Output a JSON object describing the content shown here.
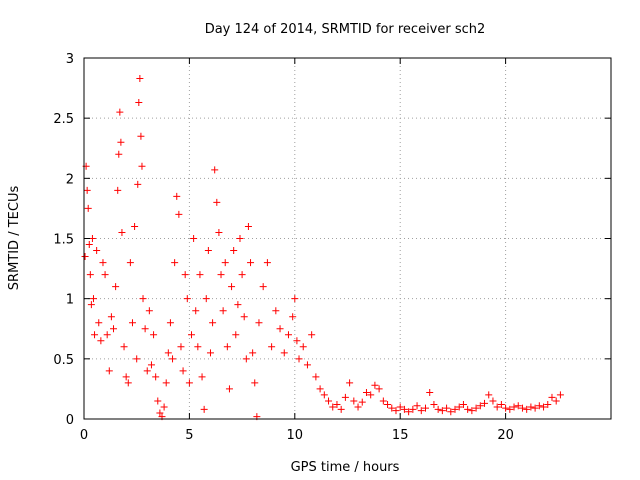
{
  "chart_data": {
    "type": "scatter",
    "title": "Day 124 of 2014, SRMTID for receiver sch2",
    "xlabel": "GPS time / hours",
    "ylabel": "SRMTID / TECUs",
    "xlim": [
      0,
      25
    ],
    "ylim": [
      0,
      3
    ],
    "x_ticks": [
      0,
      5,
      10,
      15,
      20
    ],
    "x_tick_labels": [
      "0",
      "5",
      "10",
      "15",
      "20"
    ],
    "y_ticks": [
      0,
      0.5,
      1,
      1.5,
      2,
      2.5,
      3
    ],
    "y_tick_labels": [
      "0",
      "0.5",
      "1",
      "1.5",
      "2",
      "2.5",
      "3"
    ],
    "grid": true,
    "marker": "+",
    "colors": {
      "points": "#ff0000",
      "grid": "#a0a0a0",
      "axes": "#000000"
    },
    "series": [
      {
        "name": "SRMTID",
        "points": [
          [
            0.05,
            1.35
          ],
          [
            0.1,
            2.1
          ],
          [
            0.15,
            1.9
          ],
          [
            0.2,
            1.75
          ],
          [
            0.25,
            1.45
          ],
          [
            0.3,
            1.2
          ],
          [
            0.35,
            0.95
          ],
          [
            0.4,
            1.5
          ],
          [
            0.45,
            1.0
          ],
          [
            0.5,
            0.7
          ],
          [
            0.6,
            1.4
          ],
          [
            0.7,
            0.8
          ],
          [
            0.8,
            0.65
          ],
          [
            0.9,
            1.3
          ],
          [
            1.0,
            1.2
          ],
          [
            1.1,
            0.7
          ],
          [
            1.2,
            0.4
          ],
          [
            1.3,
            0.85
          ],
          [
            1.4,
            0.75
          ],
          [
            1.5,
            1.1
          ],
          [
            1.6,
            1.9
          ],
          [
            1.65,
            2.2
          ],
          [
            1.7,
            2.55
          ],
          [
            1.75,
            2.3
          ],
          [
            1.8,
            1.55
          ],
          [
            1.9,
            0.6
          ],
          [
            2.0,
            0.35
          ],
          [
            2.1,
            0.3
          ],
          [
            2.2,
            1.3
          ],
          [
            2.3,
            0.8
          ],
          [
            2.4,
            1.6
          ],
          [
            2.5,
            0.5
          ],
          [
            2.55,
            1.95
          ],
          [
            2.6,
            2.63
          ],
          [
            2.65,
            2.83
          ],
          [
            2.7,
            2.35
          ],
          [
            2.75,
            2.1
          ],
          [
            2.8,
            1.0
          ],
          [
            2.9,
            0.75
          ],
          [
            3.0,
            0.4
          ],
          [
            3.1,
            0.9
          ],
          [
            3.2,
            0.45
          ],
          [
            3.3,
            0.7
          ],
          [
            3.4,
            0.35
          ],
          [
            3.5,
            0.15
          ],
          [
            3.6,
            0.05
          ],
          [
            3.7,
            0.02
          ],
          [
            3.8,
            0.1
          ],
          [
            3.9,
            0.3
          ],
          [
            4.0,
            0.55
          ],
          [
            4.1,
            0.8
          ],
          [
            4.2,
            0.5
          ],
          [
            4.3,
            1.3
          ],
          [
            4.4,
            1.85
          ],
          [
            4.5,
            1.7
          ],
          [
            4.6,
            0.6
          ],
          [
            4.7,
            0.4
          ],
          [
            4.8,
            1.2
          ],
          [
            4.9,
            1.0
          ],
          [
            5.0,
            0.3
          ],
          [
            5.1,
            0.7
          ],
          [
            5.2,
            1.5
          ],
          [
            5.3,
            0.9
          ],
          [
            5.4,
            0.6
          ],
          [
            5.5,
            1.2
          ],
          [
            5.6,
            0.35
          ],
          [
            5.7,
            0.08
          ],
          [
            5.8,
            1.0
          ],
          [
            5.9,
            1.4
          ],
          [
            6.0,
            0.55
          ],
          [
            6.1,
            0.8
          ],
          [
            6.2,
            2.07
          ],
          [
            6.3,
            1.8
          ],
          [
            6.4,
            1.55
          ],
          [
            6.5,
            1.2
          ],
          [
            6.6,
            0.9
          ],
          [
            6.7,
            1.3
          ],
          [
            6.8,
            0.6
          ],
          [
            6.9,
            0.25
          ],
          [
            7.0,
            1.1
          ],
          [
            7.1,
            1.4
          ],
          [
            7.2,
            0.7
          ],
          [
            7.3,
            0.95
          ],
          [
            7.4,
            1.5
          ],
          [
            7.5,
            1.2
          ],
          [
            7.6,
            0.85
          ],
          [
            7.7,
            0.5
          ],
          [
            7.8,
            1.6
          ],
          [
            7.9,
            1.3
          ],
          [
            8.0,
            0.55
          ],
          [
            8.1,
            0.3
          ],
          [
            8.2,
            0.02
          ],
          [
            8.3,
            0.8
          ],
          [
            8.5,
            1.1
          ],
          [
            8.7,
            1.3
          ],
          [
            8.9,
            0.6
          ],
          [
            9.1,
            0.9
          ],
          [
            9.3,
            0.75
          ],
          [
            9.5,
            0.55
          ],
          [
            9.7,
            0.7
          ],
          [
            9.9,
            0.85
          ],
          [
            10.0,
            1.0
          ],
          [
            10.1,
            0.65
          ],
          [
            10.2,
            0.5
          ],
          [
            10.4,
            0.6
          ],
          [
            10.6,
            0.45
          ],
          [
            10.8,
            0.7
          ],
          [
            11.0,
            0.35
          ],
          [
            11.2,
            0.25
          ],
          [
            11.4,
            0.2
          ],
          [
            11.6,
            0.15
          ],
          [
            11.8,
            0.1
          ],
          [
            12.0,
            0.12
          ],
          [
            12.2,
            0.08
          ],
          [
            12.4,
            0.18
          ],
          [
            12.6,
            0.3
          ],
          [
            12.8,
            0.15
          ],
          [
            13.0,
            0.1
          ],
          [
            13.2,
            0.14
          ],
          [
            13.4,
            0.22
          ],
          [
            13.6,
            0.2
          ],
          [
            13.8,
            0.28
          ],
          [
            14.0,
            0.25
          ],
          [
            14.2,
            0.15
          ],
          [
            14.4,
            0.12
          ],
          [
            14.6,
            0.09
          ],
          [
            14.8,
            0.07
          ],
          [
            15.0,
            0.1
          ],
          [
            15.2,
            0.08
          ],
          [
            15.4,
            0.06
          ],
          [
            15.6,
            0.08
          ],
          [
            15.8,
            0.11
          ],
          [
            16.0,
            0.07
          ],
          [
            16.2,
            0.09
          ],
          [
            16.4,
            0.22
          ],
          [
            16.6,
            0.12
          ],
          [
            16.8,
            0.08
          ],
          [
            17.0,
            0.07
          ],
          [
            17.2,
            0.09
          ],
          [
            17.4,
            0.06
          ],
          [
            17.6,
            0.08
          ],
          [
            17.8,
            0.1
          ],
          [
            18.0,
            0.12
          ],
          [
            18.2,
            0.08
          ],
          [
            18.4,
            0.07
          ],
          [
            18.6,
            0.09
          ],
          [
            18.8,
            0.11
          ],
          [
            19.0,
            0.13
          ],
          [
            19.2,
            0.2
          ],
          [
            19.4,
            0.15
          ],
          [
            19.6,
            0.1
          ],
          [
            19.8,
            0.12
          ],
          [
            20.0,
            0.09
          ],
          [
            20.2,
            0.08
          ],
          [
            20.4,
            0.1
          ],
          [
            20.6,
            0.11
          ],
          [
            20.8,
            0.09
          ],
          [
            21.0,
            0.08
          ],
          [
            21.2,
            0.1
          ],
          [
            21.4,
            0.09
          ],
          [
            21.6,
            0.11
          ],
          [
            21.8,
            0.1
          ],
          [
            22.0,
            0.12
          ],
          [
            22.2,
            0.18
          ],
          [
            22.4,
            0.15
          ],
          [
            22.6,
            0.2
          ]
        ]
      }
    ]
  }
}
